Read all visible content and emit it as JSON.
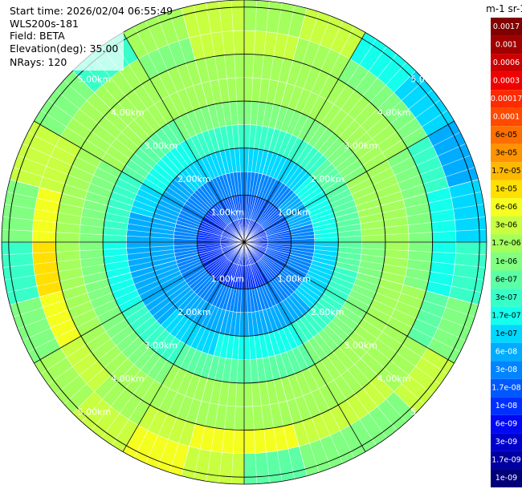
{
  "header": {
    "lines": [
      "Start time: 2026/02/04 06:55:49",
      "WLS200s-181",
      "Field: BETA",
      "Elevation(deg): 35.00",
      "NRays: 120"
    ]
  },
  "chart_data": {
    "type": "polar_heatmap",
    "rlim": [
      0,
      5.15
    ],
    "rticks": [
      {
        "value": 1,
        "label": "1.00km"
      },
      {
        "value": 2,
        "label": "2.00km"
      },
      {
        "value": 3,
        "label": "3.00km"
      },
      {
        "value": 4,
        "label": "4.00km"
      },
      {
        "value": 5,
        "label": "5.00km"
      }
    ],
    "range_edges": [
      0,
      0.5,
      1,
      1.5,
      2,
      2.5,
      3,
      3.5,
      4,
      4.5,
      5.15
    ],
    "values": [
      [
        1e-08,
        1.7e-08,
        3e-08,
        1e-07,
        3e-07,
        1e-06,
        1.7e-06,
        1.7e-06,
        3e-06,
        1.7e-06
      ],
      [
        1e-08,
        1.7e-08,
        3e-08,
        1e-07,
        3e-07,
        1e-06,
        1.7e-06,
        1.7e-06,
        1.7e-06,
        3e-06
      ],
      [
        1e-08,
        1.7e-08,
        3e-08,
        1e-07,
        3e-07,
        1e-06,
        1.7e-06,
        1.7e-06,
        1e-06,
        1.7e-07
      ],
      [
        1e-08,
        1.7e-08,
        6e-08,
        1.7e-07,
        6e-07,
        1e-06,
        1.7e-06,
        1.7e-06,
        1e-06,
        1e-07
      ],
      [
        1e-08,
        1.7e-08,
        6e-08,
        1.7e-07,
        6e-07,
        1.7e-06,
        1.7e-06,
        1e-06,
        3e-07,
        6e-08
      ],
      [
        1e-08,
        1.7e-08,
        3e-08,
        1.7e-07,
        6e-07,
        1.7e-06,
        1.7e-06,
        1e-06,
        1.7e-07,
        1e-07
      ],
      [
        1e-08,
        1.7e-08,
        3e-08,
        1e-07,
        6e-07,
        1e-06,
        1.7e-06,
        1e-06,
        1.7e-07,
        3e-07
      ],
      [
        1e-08,
        1.7e-08,
        3e-08,
        1e-07,
        3e-07,
        1e-06,
        1.7e-06,
        1.7e-06,
        6e-07,
        1e-06
      ],
      [
        1e-08,
        1.7e-08,
        3e-08,
        1e-07,
        3e-07,
        1e-06,
        1.7e-06,
        1.7e-06,
        1.7e-06,
        3e-06
      ],
      [
        1e-08,
        1.7e-08,
        3e-08,
        6e-08,
        3e-07,
        1e-06,
        1.7e-06,
        1.7e-06,
        3e-06,
        1e-06
      ],
      [
        1e-08,
        1e-08,
        3e-08,
        6e-08,
        1.7e-07,
        6e-07,
        1.7e-06,
        1.7e-06,
        3e-06,
        1e-06
      ],
      [
        1e-08,
        1e-08,
        3e-08,
        6e-08,
        1.7e-07,
        6e-07,
        1.7e-06,
        1.7e-06,
        6e-06,
        6e-07
      ],
      [
        1e-08,
        1e-08,
        3e-08,
        6e-08,
        1.7e-07,
        6e-07,
        1.7e-06,
        1.7e-06,
        6e-06,
        3e-06
      ],
      [
        1e-08,
        1e-08,
        3e-08,
        6e-08,
        1e-07,
        6e-07,
        1.7e-06,
        1.7e-06,
        3e-06,
        6e-06
      ],
      [
        1e-08,
        1e-08,
        3e-08,
        6e-08,
        1e-07,
        3e-07,
        1e-06,
        1.7e-06,
        1.7e-06,
        3e-06
      ],
      [
        1e-08,
        1e-08,
        3e-08,
        6e-08,
        6e-08,
        3e-07,
        1e-06,
        1.7e-06,
        3e-06,
        1.7e-06
      ],
      [
        1e-08,
        1e-08,
        3e-08,
        6e-08,
        6e-08,
        1.7e-07,
        1e-06,
        1.7e-06,
        6e-06,
        1e-06
      ],
      [
        1e-08,
        1e-08,
        3e-08,
        6e-08,
        6e-08,
        1.7e-07,
        1e-06,
        1.7e-06,
        1e-05,
        3e-07
      ],
      [
        1e-08,
        1e-08,
        3e-08,
        6e-08,
        6e-08,
        3e-07,
        1e-06,
        1.7e-06,
        6e-06,
        1e-06
      ],
      [
        1e-08,
        1e-08,
        3e-08,
        6e-08,
        1e-07,
        3e-07,
        1e-06,
        1.7e-06,
        3e-06,
        3e-06
      ],
      [
        1e-08,
        1e-08,
        3e-08,
        6e-08,
        1.7e-07,
        6e-07,
        1.7e-06,
        1.7e-06,
        1.7e-06,
        1e-06
      ],
      [
        1e-08,
        1.7e-08,
        3e-08,
        1e-07,
        1.7e-07,
        6e-07,
        1.7e-06,
        1.7e-06,
        1.7e-06,
        3e-07
      ],
      [
        1e-08,
        1.7e-08,
        3e-08,
        1e-07,
        3e-07,
        1e-06,
        1.7e-06,
        1.7e-06,
        1e-06,
        1.7e-06
      ],
      [
        1e-08,
        1.7e-08,
        3e-08,
        1e-07,
        3e-07,
        1e-06,
        1.7e-06,
        1.7e-06,
        3e-06,
        3e-06
      ]
    ],
    "colorbar": {
      "label": "m-1 sr-1",
      "ticks": [
        0.0017,
        0.001,
        0.0006,
        0.0003,
        0.00017,
        0.0001,
        {
          "value": 6e-05,
          "label": "6e-05"
        },
        {
          "value": 3e-05,
          "label": "3e-05"
        },
        {
          "value": 1.7e-05,
          "label": "1.7e-05"
        },
        {
          "value": 1e-05,
          "label": "1e-05"
        },
        {
          "value": 6e-06,
          "label": "6e-06"
        },
        {
          "value": 3e-06,
          "label": "3e-06"
        },
        {
          "value": 1.7e-06,
          "label": "1.7e-06"
        },
        {
          "value": 1e-06,
          "label": "1e-06"
        },
        {
          "value": 6e-07,
          "label": "6e-07"
        },
        {
          "value": 3e-07,
          "label": "3e-07"
        },
        {
          "value": 1.7e-07,
          "label": "1.7e-07"
        },
        {
          "value": 1e-07,
          "label": "1e-07"
        },
        {
          "value": 6e-08,
          "label": "6e-08"
        },
        {
          "value": 3e-08,
          "label": "3e-08"
        },
        {
          "value": 1.7e-08,
          "label": "1.7e-08"
        },
        {
          "value": 1e-08,
          "label": "1e-08"
        },
        {
          "value": 6e-09,
          "label": "6e-09"
        },
        {
          "value": 3e-09,
          "label": "3e-09"
        },
        {
          "value": 1.7e-09,
          "label": "1.7e-09"
        },
        {
          "value": 1e-09,
          "label": "1e-09"
        }
      ],
      "colors": [
        "#800000",
        "#a00000",
        "#cc0000",
        "#f00000",
        "#ff2a00",
        "#ff4a00",
        "#ff6e00",
        "#ff9400",
        "#ffb800",
        "#ffe000",
        "#f4ff20",
        "#c8ff40",
        "#a4ff5c",
        "#80ff80",
        "#5cffa4",
        "#38ffc8",
        "#14ffec",
        "#00d8ff",
        "#00acff",
        "#0084ff",
        "#0058ff",
        "#0030ff",
        "#0008f4",
        "#0000cc",
        "#0000a0",
        "#000078"
      ]
    }
  }
}
